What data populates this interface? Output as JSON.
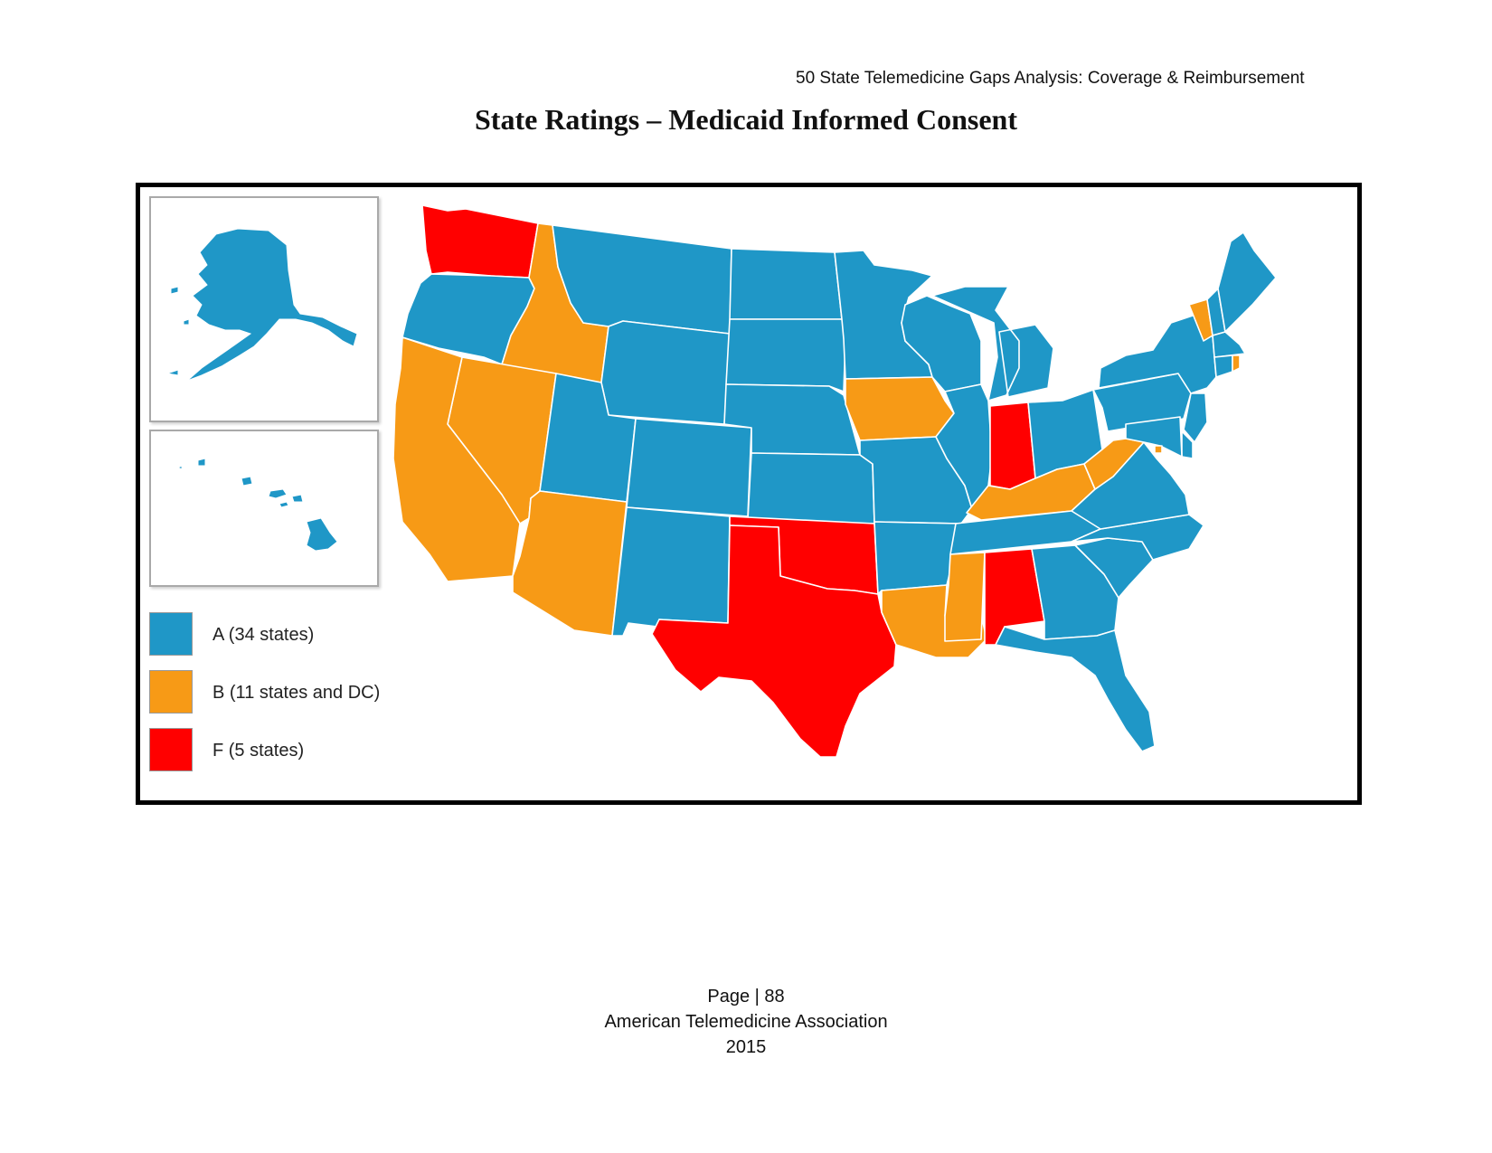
{
  "header": {
    "running_title": "50 State Telemedicine Gaps Analysis:  Coverage & Reimbursement"
  },
  "title": "State Ratings – Medicaid Informed Consent",
  "colors": {
    "A": "#1f97c7",
    "B": "#f79a16",
    "F": "#ff0000",
    "border": "#ffffff"
  },
  "legend": [
    {
      "grade": "A",
      "label": "A (34 states)",
      "color": "#1f97c7"
    },
    {
      "grade": "B",
      "label": "B (11 states and DC)",
      "color": "#f79a16"
    },
    {
      "grade": "F",
      "label": "F (5 states)",
      "color": "#ff0000"
    }
  ],
  "state_grades": {
    "A": [
      "AK",
      "HI",
      "OR",
      "MT",
      "WY",
      "UT",
      "CO",
      "NM",
      "ND",
      "SD",
      "NE",
      "KS",
      "MN",
      "WI",
      "MI",
      "IL",
      "MO",
      "AR",
      "OH",
      "PA",
      "NY",
      "ME",
      "NH",
      "MA",
      "CT",
      "NJ",
      "DE",
      "MD",
      "VA",
      "NC",
      "SC",
      "GA",
      "FL",
      "TN"
    ],
    "B": [
      "CA",
      "NV",
      "ID",
      "AZ",
      "IA",
      "LA",
      "MS",
      "KY",
      "WV",
      "VT",
      "RI",
      "DC"
    ],
    "F": [
      "WA",
      "OK",
      "TX",
      "IN",
      "AL"
    ]
  },
  "footer": {
    "page": "Page | 88",
    "org": "American Telemedicine Association",
    "year": "2015"
  }
}
